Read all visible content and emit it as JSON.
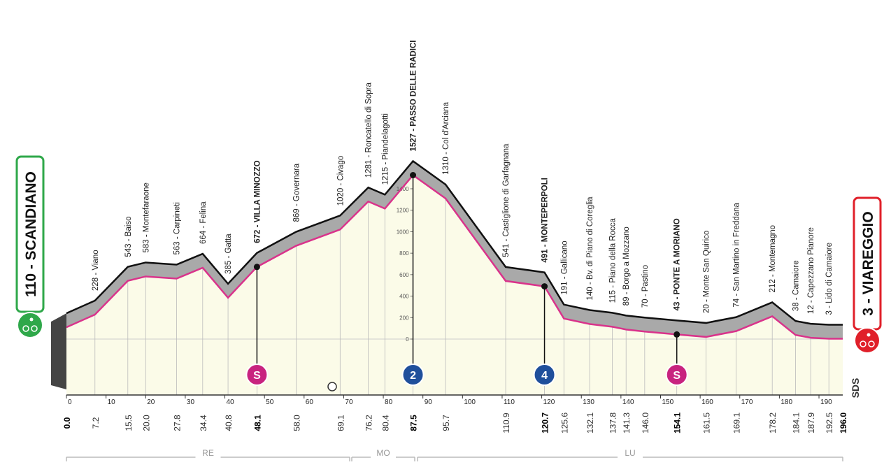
{
  "chart_data": {
    "type": "profile",
    "xlim": [
      0,
      196
    ],
    "ylim": [
      0,
      1400
    ],
    "xticks": [
      0,
      10,
      20,
      30,
      40,
      50,
      60,
      70,
      80,
      90,
      100,
      110,
      120,
      130,
      140,
      150,
      160,
      170,
      180,
      190
    ],
    "yticks": [
      0,
      200,
      400,
      600,
      800,
      1000,
      1200,
      1400
    ],
    "waypoints": [
      {
        "km": 0,
        "km_label": "0.0",
        "alt": 110,
        "label": "110 - SCANDIANO",
        "role": "start"
      },
      {
        "km": 7.2,
        "alt": 228,
        "label": "228 - Viano"
      },
      {
        "km": 15.5,
        "alt": 543,
        "label": "543 - Baiso"
      },
      {
        "km": 20.0,
        "km_label": "20.0",
        "alt": 583,
        "label": "583 - Montefaraone"
      },
      {
        "km": 27.8,
        "alt": 563,
        "label": "563 - Carpineti"
      },
      {
        "km": 34.4,
        "alt": 664,
        "label": "664 - Felina"
      },
      {
        "km": 40.8,
        "alt": 385,
        "label": "385 - Gatta"
      },
      {
        "km": 48.1,
        "alt": 672,
        "label": "672 - VILLA MINOZZO",
        "bold": true,
        "badge": "S",
        "badge_type": "sprint"
      },
      {
        "km": 58.0,
        "km_label": "58.0",
        "alt": 869,
        "label": "869 - Governara"
      },
      {
        "km": 69.1,
        "alt": 1020,
        "label": "1020 - Civago"
      },
      {
        "km": 76.2,
        "alt": 1281,
        "label": "1281 - Roncatello di Sopra"
      },
      {
        "km": 80.4,
        "alt": 1215,
        "label": "1215 - Piandelagotti"
      },
      {
        "km": 87.5,
        "alt": 1527,
        "label": "1527 - PASSO DELLE RADICI",
        "bold": true,
        "badge": "2",
        "badge_type": "kom"
      },
      {
        "km": 95.7,
        "alt": 1310,
        "label": "1310 - Col d'Arciana"
      },
      {
        "km": 110.9,
        "alt": 541,
        "label": "541 - Castiglione di Garfagnana"
      },
      {
        "km": 120.7,
        "alt": 491,
        "label": "491 - MONTEPERPOLI",
        "bold": true,
        "badge": "4",
        "badge_type": "kom"
      },
      {
        "km": 125.6,
        "alt": 191,
        "label": "191 - Gallicano"
      },
      {
        "km": 132.1,
        "alt": 140,
        "label": "140 - Bv. di Piano di Coreglia"
      },
      {
        "km": 137.8,
        "alt": 115,
        "label": "115 - Piano della Rocca"
      },
      {
        "km": 141.3,
        "alt": 89,
        "label": "89 - Borgo a Mozzano"
      },
      {
        "km": 146.0,
        "km_label": "146.0",
        "alt": 70,
        "label": "70 - Pastino"
      },
      {
        "km": 154.1,
        "alt": 43,
        "label": "43 - PONTE A MORIANO",
        "bold": true,
        "badge": "S",
        "badge_type": "sprint"
      },
      {
        "km": 161.5,
        "alt": 20,
        "label": "20 - Monte San Quirico"
      },
      {
        "km": 169.1,
        "alt": 74,
        "label": "74 - San Martino in Freddana"
      },
      {
        "km": 178.2,
        "alt": 212,
        "label": "212 - Montemagno"
      },
      {
        "km": 184.1,
        "alt": 38,
        "label": "38 - Camaiore"
      },
      {
        "km": 187.9,
        "alt": 12,
        "label": "12 - Capezzano Pianore"
      },
      {
        "km": 192.5,
        "alt": 3,
        "label": "3 - Lido di Camaiore"
      },
      {
        "km": 196.0,
        "km_label": "196.0",
        "alt": 3,
        "label": "3 - VIAREGGIO",
        "role": "finish"
      }
    ],
    "regions": [
      "RE",
      "MO",
      "LU"
    ],
    "logo": "SDS",
    "colors": {
      "ground": "#fbfbe8",
      "band": "#a9a9a9",
      "line": "#d9338b",
      "sprint": "#c8237f",
      "kom": "#1f4f9b",
      "start": "#2fa84a",
      "finish": "#e0202a"
    }
  }
}
